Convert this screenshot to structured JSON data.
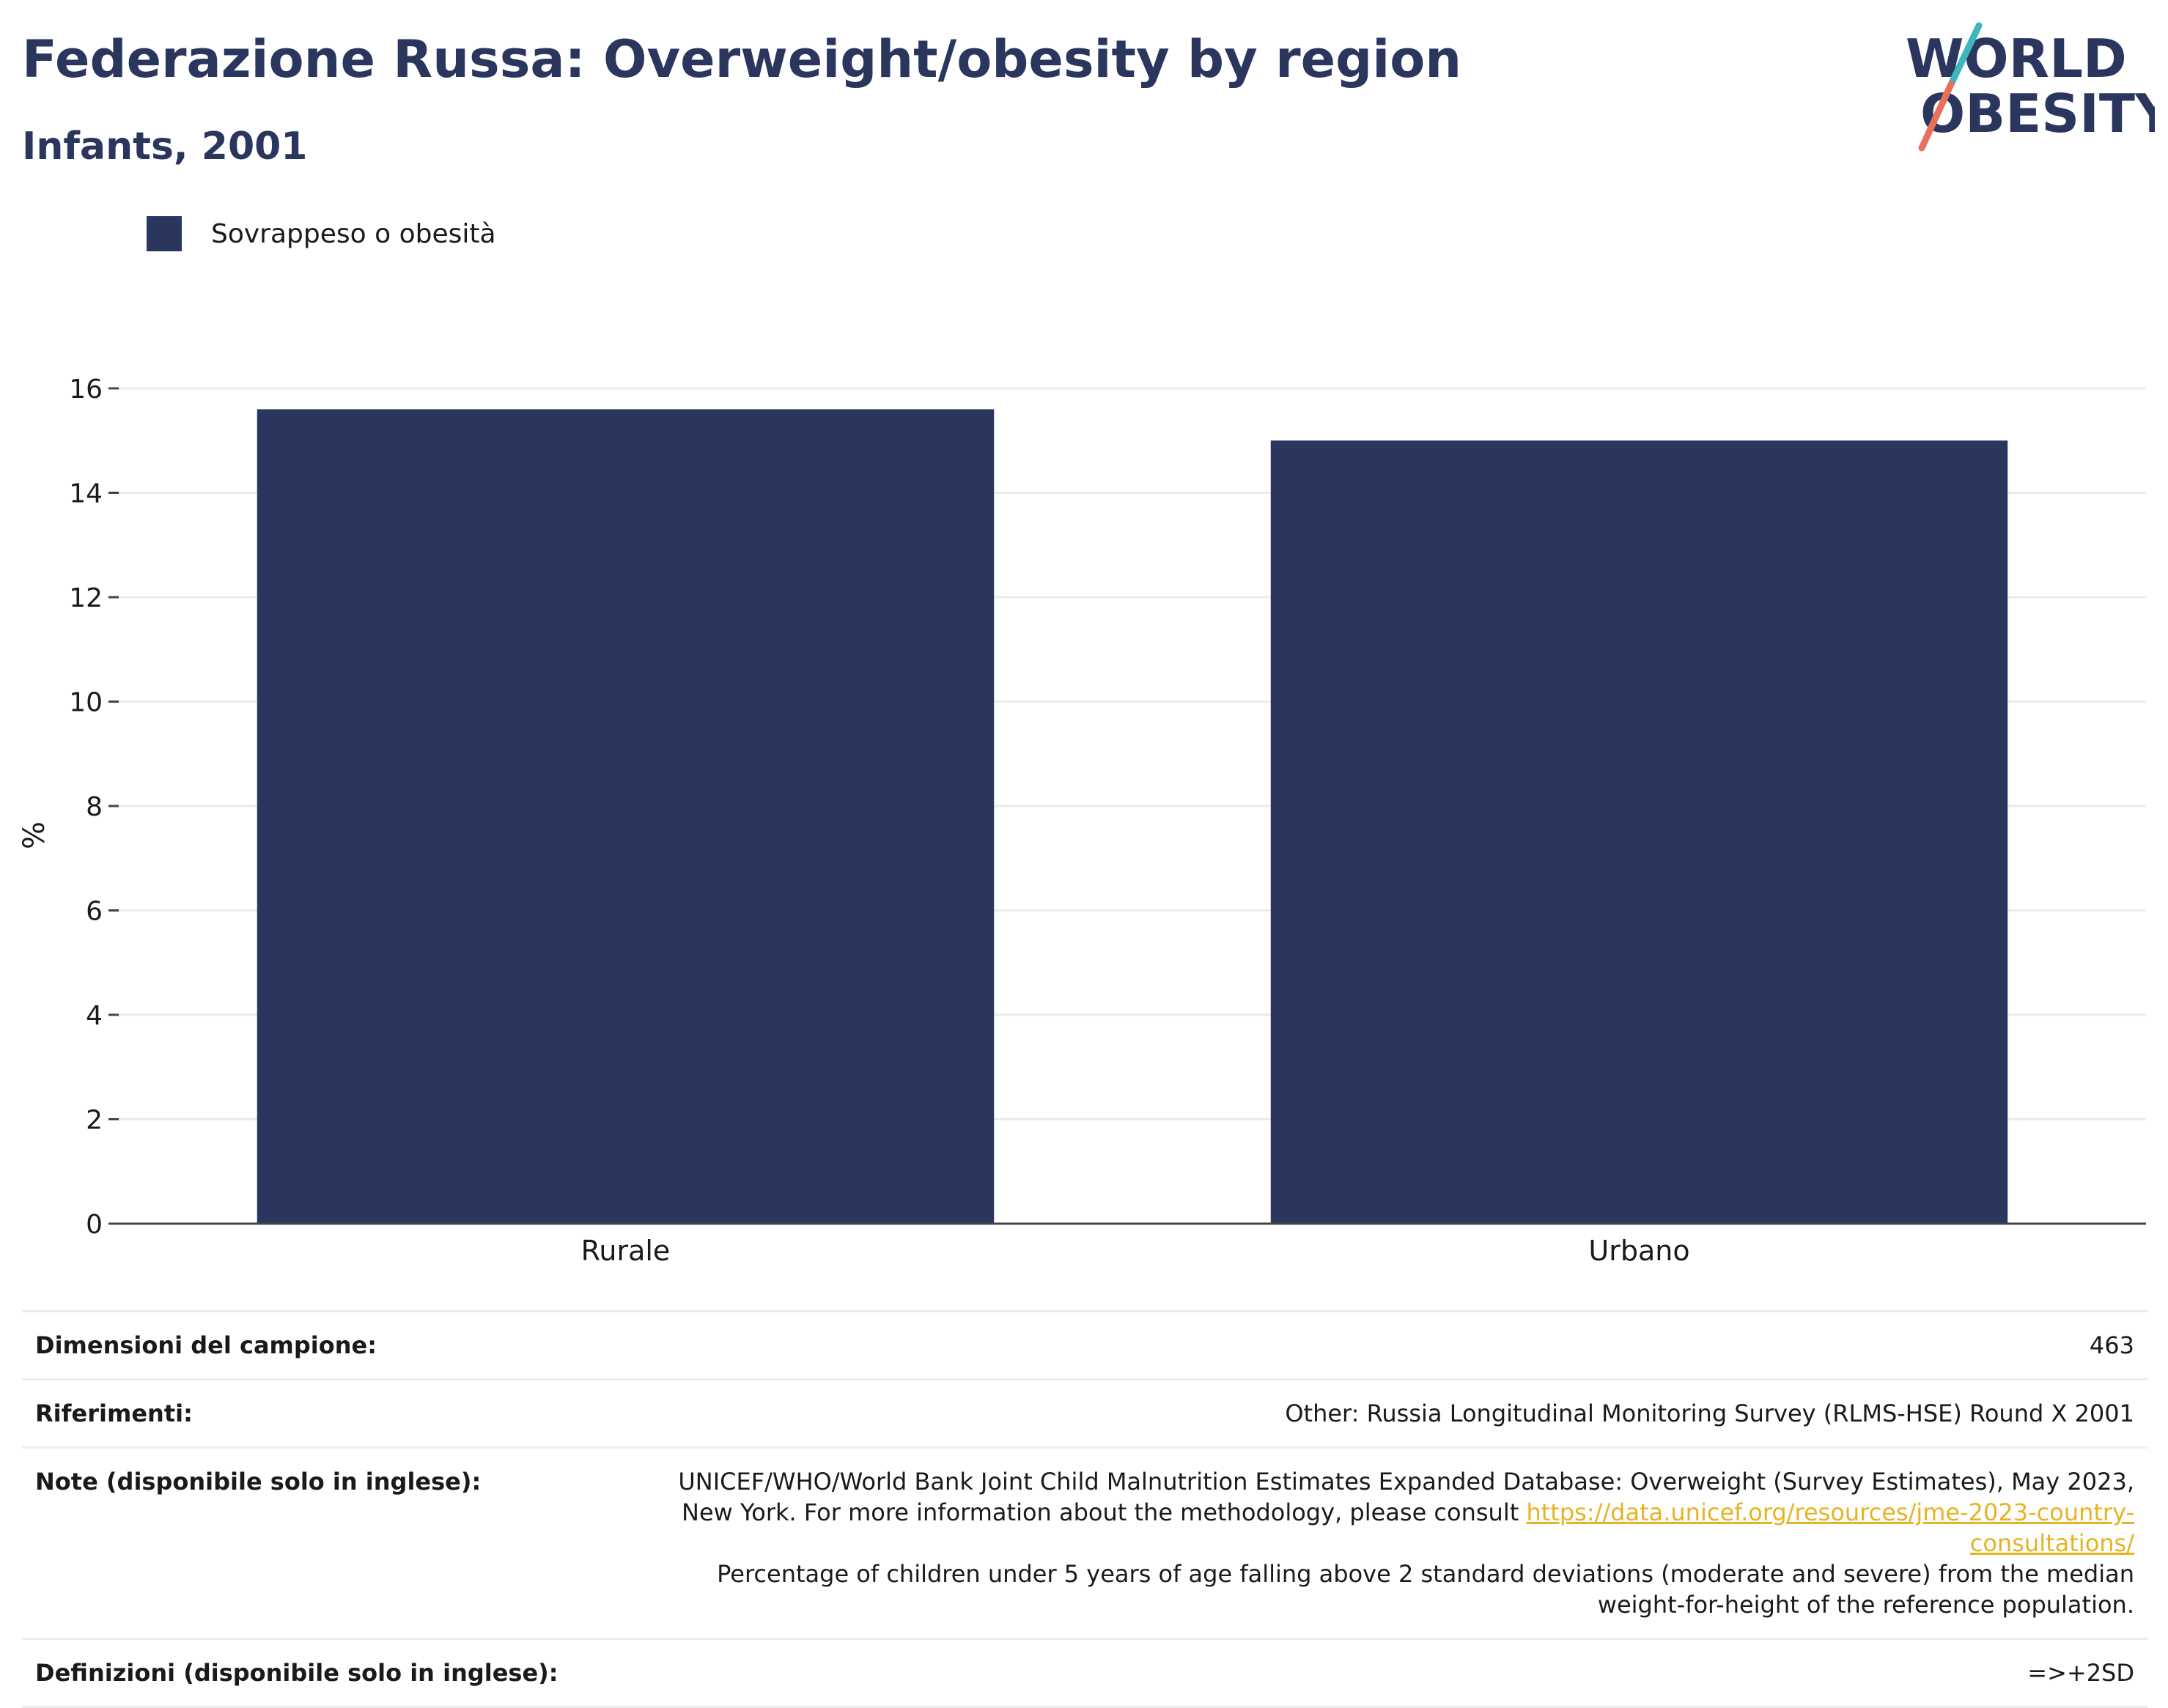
{
  "header": {
    "title": "Federazione Russa: Overweight/obesity by region",
    "subtitle": "Infants, 2001"
  },
  "logo": {
    "line1": "WORLD",
    "line2": "OBESITY"
  },
  "chart_data": {
    "type": "bar",
    "categories": [
      "Rurale",
      "Urbano"
    ],
    "series": [
      {
        "name": "Sovrappeso o obesità",
        "values": [
          15.6,
          15.0
        ],
        "color": "#2b365f"
      }
    ],
    "ylabel": "%",
    "ylim": [
      0,
      16
    ],
    "yticks": [
      0,
      2,
      4,
      6,
      8,
      10,
      12,
      14,
      16
    ],
    "grid": true,
    "legend": "top-left"
  },
  "info": {
    "sample_label": "Dimensioni del campione:",
    "sample_value": "463",
    "references_label": "Riferimenti:",
    "references_value": "Other: Russia Longitudinal Monitoring Survey (RLMS-HSE) Round X 2001",
    "notes_label": "Note (disponibile solo in inglese):",
    "notes_text1": "UNICEF/WHO/World Bank Joint Child Malnutrition Estimates Expanded Database: Overweight (Survey Estimates), May 2023, New York. For more information about the methodology, please consult",
    "notes_link": "https://data.unicef.org/resources/jme-2023-country-consultations/",
    "notes_text2": "Percentage of children under 5 years of age falling above 2 standard deviations (moderate and severe) from the median weight-for-height of the reference population.",
    "definitions_label": "Definizioni (disponibile solo in inglese):",
    "definitions_value": "=>+2SD"
  }
}
